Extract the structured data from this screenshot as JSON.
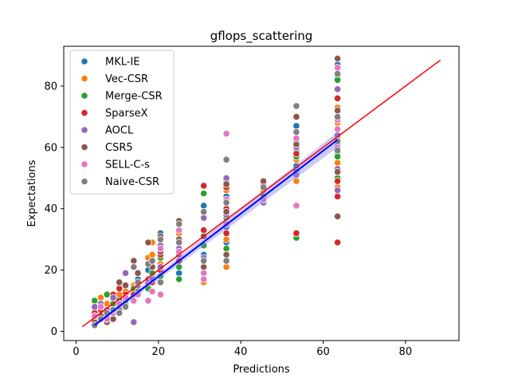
{
  "chart_data": {
    "type": "scatter",
    "title": "gflops_scattering",
    "xlabel": "Predictions",
    "ylabel": "Expectations",
    "xlim": [
      -3,
      93
    ],
    "ylim": [
      -3,
      93
    ],
    "xticks": [
      0,
      20,
      40,
      60,
      80
    ],
    "yticks": [
      0,
      20,
      40,
      60,
      80
    ],
    "grid": false,
    "legend_position": "top-left",
    "x_levels": [
      4.5,
      6,
      7.5,
      9,
      10.5,
      12,
      14,
      15,
      17.5,
      18.5,
      20.5,
      25,
      31,
      36.5,
      45.5,
      53.5,
      63.5
    ],
    "series": [
      {
        "name": "MKL-IE",
        "color": "#1f77b4",
        "points": [
          [
            4.5,
            4.5
          ],
          [
            6,
            6.5
          ],
          [
            7.5,
            5
          ],
          [
            9,
            9
          ],
          [
            10.5,
            10.5
          ],
          [
            12,
            9
          ],
          [
            14,
            13.5
          ],
          [
            15,
            17
          ],
          [
            17.5,
            20
          ],
          [
            18.5,
            18
          ],
          [
            20.5,
            32
          ],
          [
            20.5,
            22
          ],
          [
            25,
            19
          ],
          [
            25,
            30
          ],
          [
            31,
            25
          ],
          [
            31,
            41
          ],
          [
            36.5,
            29
          ],
          [
            36.5,
            34
          ],
          [
            36.5,
            44
          ],
          [
            45.5,
            46
          ],
          [
            53.5,
            54
          ],
          [
            53.5,
            52
          ],
          [
            53.5,
            59
          ],
          [
            53.5,
            62
          ],
          [
            53.5,
            67
          ],
          [
            63.5,
            66
          ],
          [
            63.5,
            61
          ],
          [
            63.5,
            83
          ],
          [
            63.5,
            58
          ],
          [
            63.5,
            87
          ]
        ]
      },
      {
        "name": "Vec-CSR",
        "color": "#ff7f0e",
        "points": [
          [
            4.5,
            7
          ],
          [
            6,
            11
          ],
          [
            7.5,
            9
          ],
          [
            9,
            10
          ],
          [
            10.5,
            12
          ],
          [
            12,
            13
          ],
          [
            14,
            15
          ],
          [
            15,
            14
          ],
          [
            17.5,
            24
          ],
          [
            18.5,
            29
          ],
          [
            18.5,
            25
          ],
          [
            20.5,
            22
          ],
          [
            25,
            23
          ],
          [
            25,
            32
          ],
          [
            31,
            16
          ],
          [
            31,
            33
          ],
          [
            36.5,
            21
          ],
          [
            36.5,
            46
          ],
          [
            36.5,
            30
          ],
          [
            45.5,
            46
          ],
          [
            53.5,
            49
          ],
          [
            53.5,
            56
          ],
          [
            63.5,
            73
          ],
          [
            63.5,
            47
          ],
          [
            63.5,
            68
          ],
          [
            63.5,
            55
          ]
        ]
      },
      {
        "name": "Merge-CSR",
        "color": "#2ca02c",
        "points": [
          [
            4.5,
            10
          ],
          [
            6,
            6
          ],
          [
            7.5,
            12
          ],
          [
            9,
            9
          ],
          [
            10.5,
            8
          ],
          [
            12,
            10
          ],
          [
            14,
            14
          ],
          [
            15,
            13
          ],
          [
            17.5,
            14
          ],
          [
            18.5,
            19
          ],
          [
            20.5,
            18
          ],
          [
            20.5,
            24
          ],
          [
            25,
            17
          ],
          [
            25,
            21
          ],
          [
            31,
            45
          ],
          [
            31,
            28
          ],
          [
            36.5,
            37
          ],
          [
            36.5,
            27
          ],
          [
            36.5,
            49
          ],
          [
            45.5,
            44
          ],
          [
            53.5,
            30.5
          ],
          [
            53.5,
            57
          ],
          [
            63.5,
            82
          ],
          [
            63.5,
            57
          ],
          [
            63.5,
            63
          ],
          [
            63.5,
            50
          ]
        ]
      },
      {
        "name": "SparseX",
        "color": "#d62728",
        "points": [
          [
            4.5,
            6
          ],
          [
            6,
            7
          ],
          [
            7.5,
            7
          ],
          [
            9,
            12
          ],
          [
            10.5,
            14
          ],
          [
            12,
            12
          ],
          [
            14,
            12
          ],
          [
            15,
            16
          ],
          [
            17.5,
            16
          ],
          [
            18.5,
            16
          ],
          [
            20.5,
            25
          ],
          [
            20.5,
            20
          ],
          [
            25,
            27
          ],
          [
            25,
            23
          ],
          [
            31,
            47.5
          ],
          [
            31,
            33
          ],
          [
            36.5,
            40
          ],
          [
            36.5,
            32
          ],
          [
            36.5,
            47
          ],
          [
            45.5,
            48
          ],
          [
            53.5,
            32
          ],
          [
            53.5,
            58
          ],
          [
            63.5,
            76
          ],
          [
            63.5,
            29
          ],
          [
            63.5,
            44
          ],
          [
            63.5,
            49
          ]
        ]
      },
      {
        "name": "AOCL",
        "color": "#9467bd",
        "points": [
          [
            4.5,
            8
          ],
          [
            6,
            9
          ],
          [
            7.5,
            7
          ],
          [
            9,
            11
          ],
          [
            10.5,
            7
          ],
          [
            12,
            19
          ],
          [
            14,
            3
          ],
          [
            15,
            15
          ],
          [
            17.5,
            17
          ],
          [
            18.5,
            17
          ],
          [
            20.5,
            21
          ],
          [
            20.5,
            28
          ],
          [
            25,
            25
          ],
          [
            25,
            27
          ],
          [
            31,
            24
          ],
          [
            31,
            37
          ],
          [
            36.5,
            50
          ],
          [
            36.5,
            42
          ],
          [
            36.5,
            38
          ],
          [
            45.5,
            42
          ],
          [
            53.5,
            60
          ],
          [
            53.5,
            51
          ],
          [
            63.5,
            79
          ],
          [
            63.5,
            46
          ],
          [
            63.5,
            64
          ],
          [
            63.5,
            53
          ]
        ]
      },
      {
        "name": "CSR5",
        "color": "#8c564b",
        "points": [
          [
            4.5,
            3
          ],
          [
            6,
            5
          ],
          [
            7.5,
            3
          ],
          [
            9,
            4
          ],
          [
            10.5,
            16
          ],
          [
            12,
            15
          ],
          [
            14,
            23
          ],
          [
            15,
            19
          ],
          [
            17.5,
            29
          ],
          [
            18.5,
            21
          ],
          [
            20.5,
            31
          ],
          [
            20.5,
            26
          ],
          [
            25,
            36
          ],
          [
            25,
            30
          ],
          [
            31,
            31
          ],
          [
            31,
            21
          ],
          [
            36.5,
            48
          ],
          [
            36.5,
            39
          ],
          [
            36.5,
            25
          ],
          [
            45.5,
            49
          ],
          [
            53.5,
            70
          ],
          [
            53.5,
            61
          ],
          [
            63.5,
            89
          ],
          [
            63.5,
            37.5
          ],
          [
            63.5,
            52
          ],
          [
            63.5,
            72
          ]
        ]
      },
      {
        "name": "SELL-C-s",
        "color": "#e377c2",
        "points": [
          [
            4.5,
            5
          ],
          [
            6,
            8
          ],
          [
            7.5,
            4
          ],
          [
            9,
            6
          ],
          [
            10.5,
            9
          ],
          [
            12,
            11
          ],
          [
            14,
            10
          ],
          [
            15,
            12
          ],
          [
            17.5,
            10
          ],
          [
            18.5,
            13
          ],
          [
            20.5,
            27
          ],
          [
            20.5,
            12
          ],
          [
            25,
            33
          ],
          [
            25,
            26
          ],
          [
            31,
            19
          ],
          [
            31,
            17
          ],
          [
            36.5,
            64.5
          ],
          [
            36.5,
            43
          ],
          [
            36.5,
            35
          ],
          [
            45.5,
            43
          ],
          [
            53.5,
            41
          ],
          [
            53.5,
            63
          ],
          [
            63.5,
            86
          ],
          [
            63.5,
            66
          ],
          [
            63.5,
            60
          ],
          [
            63.5,
            69
          ]
        ]
      },
      {
        "name": "Naive-CSR",
        "color": "#7f7f7f",
        "points": [
          [
            4.5,
            2
          ],
          [
            6,
            4
          ],
          [
            7.5,
            6
          ],
          [
            9,
            7
          ],
          [
            10.5,
            6
          ],
          [
            12,
            8
          ],
          [
            14,
            21
          ],
          [
            15,
            16
          ],
          [
            17.5,
            22
          ],
          [
            18.5,
            23
          ],
          [
            20.5,
            30
          ],
          [
            20.5,
            16
          ],
          [
            25,
            35
          ],
          [
            25,
            29
          ],
          [
            31,
            23
          ],
          [
            31,
            39
          ],
          [
            36.5,
            56
          ],
          [
            36.5,
            42
          ],
          [
            36.5,
            23
          ],
          [
            45.5,
            47
          ],
          [
            53.5,
            73.5
          ],
          [
            53.5,
            65
          ],
          [
            63.5,
            84
          ],
          [
            63.5,
            70
          ],
          [
            63.5,
            59
          ],
          [
            63.5,
            62
          ]
        ]
      }
    ],
    "reference_line": {
      "color": "#ff0000",
      "x": [
        1.5,
        88.5
      ],
      "y": [
        1.5,
        88.5
      ]
    },
    "fit_line": {
      "color": "#0000ff",
      "band_color": "#8c8cf0",
      "x": [
        4.5,
        63.5
      ],
      "y": [
        2.0,
        62.5
      ]
    }
  }
}
